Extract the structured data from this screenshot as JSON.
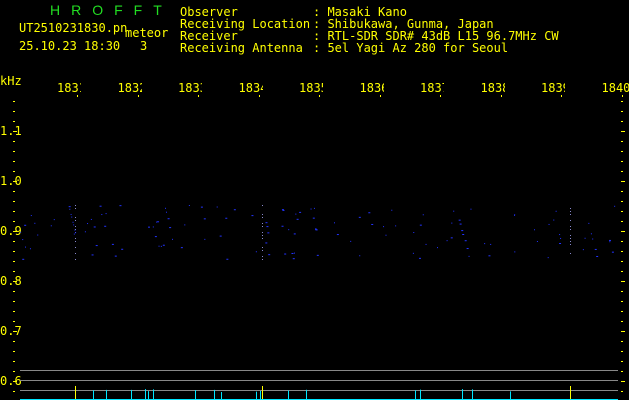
{
  "header": {
    "logo": "HROFFT",
    "filename": "UT2510231830.pn",
    "mode": "meteor",
    "datetime": "25.10.23 18:30",
    "count": "3",
    "info": [
      {
        "label": "Observer",
        "value": ": Masaki Kano"
      },
      {
        "label": "Receiving Location",
        "value": ": Shibukawa, Gunma, Japan"
      },
      {
        "label": "Receiver",
        "value": ": RTL-SDR SDR# 43dB L15 96.7MHz CW"
      },
      {
        "label": "Receiving Antenna",
        "value": ": 5el Yagi Az 280 for Seoul"
      }
    ]
  },
  "axes": {
    "y_unit": "kHz",
    "y_ticks": [
      "1.1",
      "1.0",
      "0.9",
      "0.8",
      "0.7",
      "0.6"
    ],
    "x_ticks": [
      "1831",
      "1832",
      "1833",
      "1834",
      "1835",
      "1836",
      "1837",
      "1838",
      "1839",
      "1840"
    ]
  },
  "colors": {
    "text": "#ffff00",
    "logo": "#22dd22",
    "signal": "#2233ff",
    "spectrum": "#00e5ff",
    "marker": "#ffff00",
    "line": "#888888"
  }
}
